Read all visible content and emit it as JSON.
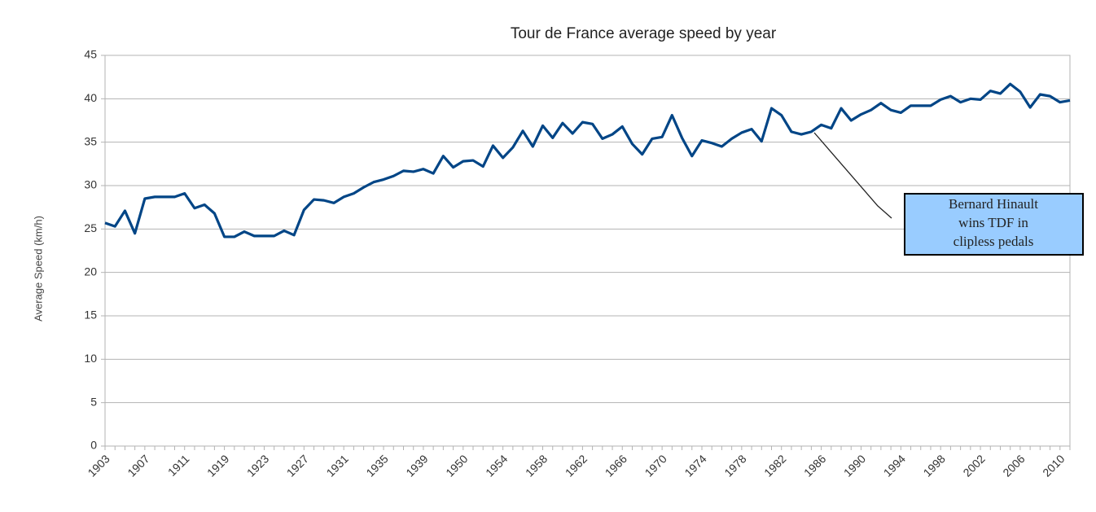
{
  "chart_data": {
    "type": "line",
    "title": "Tour de France average speed by year",
    "y_label": "Average Speed (km/h)",
    "categories": [
      "1903",
      null,
      null,
      null,
      "1907",
      null,
      null,
      null,
      "1911",
      null,
      null,
      null,
      "1919",
      null,
      null,
      null,
      "1923",
      null,
      null,
      null,
      "1927",
      null,
      null,
      null,
      "1931",
      null,
      null,
      null,
      "1935",
      null,
      null,
      null,
      "1939",
      null,
      null,
      null,
      "1950",
      null,
      null,
      null,
      "1954",
      null,
      null,
      null,
      "1958",
      null,
      null,
      null,
      "1962",
      null,
      null,
      null,
      "1966",
      null,
      null,
      null,
      "1970",
      null,
      null,
      null,
      "1974",
      null,
      null,
      null,
      "1978",
      null,
      null,
      null,
      "1982",
      null,
      null,
      null,
      "1986",
      null,
      null,
      null,
      "1990",
      null,
      null,
      null,
      "1994",
      null,
      null,
      null,
      "1998",
      null,
      null,
      null,
      "2002",
      null,
      null,
      null,
      "2006",
      null,
      null,
      null,
      "2010",
      null
    ],
    "values": [
      25.7,
      25.3,
      27.1,
      24.5,
      28.5,
      28.7,
      28.7,
      28.7,
      29.1,
      27.4,
      27.8,
      26.8,
      24.1,
      24.1,
      24.7,
      24.2,
      24.2,
      24.2,
      24.8,
      24.3,
      27.2,
      28.4,
      28.3,
      28.0,
      28.7,
      29.1,
      29.8,
      30.4,
      30.7,
      31.1,
      31.7,
      31.6,
      31.9,
      31.4,
      33.4,
      32.1,
      32.8,
      32.9,
      32.2,
      34.6,
      33.2,
      34.4,
      36.3,
      34.5,
      36.9,
      35.5,
      37.2,
      36.0,
      37.3,
      37.1,
      35.4,
      35.9,
      36.8,
      34.8,
      33.6,
      35.4,
      35.6,
      38.1,
      35.5,
      33.4,
      35.2,
      34.9,
      34.5,
      35.4,
      36.1,
      36.5,
      35.1,
      38.9,
      38.1,
      36.2,
      35.9,
      36.2,
      37.0,
      36.6,
      38.9,
      37.5,
      38.2,
      38.7,
      39.5,
      38.7,
      38.4,
      39.2,
      39.2,
      39.2,
      39.9,
      40.3,
      39.6,
      40.0,
      39.9,
      40.9,
      40.6,
      41.7,
      40.8,
      39.0,
      40.5,
      40.3,
      39.6,
      39.8
    ],
    "color": "#004586",
    "ylim": [
      0,
      45
    ],
    "yticks": [
      0,
      5,
      10,
      15,
      20,
      25,
      30,
      35,
      40,
      45
    ],
    "grid": true,
    "annotation": {
      "lines": [
        "Bernard Hinault",
        "wins TDF in",
        "clipless pedals"
      ]
    }
  }
}
